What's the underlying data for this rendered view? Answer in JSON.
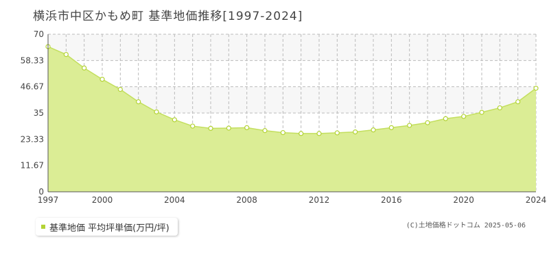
{
  "title": "横浜市中区かもめ町 基準地価推移[1997-2024]",
  "legend_label": "基準地価 平均坪単価(万円/坪)",
  "credit": "(C)土地価格ドットコム 2025-05-06",
  "colors": {
    "fill": "#dbed95",
    "line": "#c3df5e",
    "marker": "#b3d335",
    "band": "#f7f7f7"
  },
  "chart_data": {
    "type": "area",
    "title": "横浜市中区かもめ町 基準地価推移[1997-2024]",
    "xlabel": "",
    "ylabel": "",
    "xlim": [
      1997,
      2024
    ],
    "ylim": [
      0,
      70
    ],
    "y_ticks": [
      "0",
      "11.67",
      "23.33",
      "35",
      "46.67",
      "58.33",
      "70"
    ],
    "y_tick_values": [
      0,
      11.67,
      23.33,
      35,
      46.67,
      58.33,
      70
    ],
    "x_ticks": [
      "1997",
      "2000",
      "2004",
      "2008",
      "2012",
      "2016",
      "2020",
      "2024"
    ],
    "x_tick_values": [
      1997,
      2000,
      2004,
      2008,
      2012,
      2016,
      2020,
      2024
    ],
    "grid": true,
    "legend_position": "bottom-left",
    "series": [
      {
        "name": "基準地価 平均坪単価(万円/坪)",
        "x": [
          1997,
          1998,
          1999,
          2000,
          2001,
          2002,
          2003,
          2004,
          2005,
          2006,
          2007,
          2008,
          2009,
          2010,
          2011,
          2012,
          2013,
          2014,
          2015,
          2016,
          2017,
          2018,
          2019,
          2020,
          2021,
          2022,
          2023,
          2024
        ],
        "values": [
          64.5,
          61.0,
          55.0,
          50.0,
          45.5,
          40.0,
          35.5,
          32.0,
          29.2,
          28.2,
          28.3,
          28.5,
          27.2,
          26.3,
          25.9,
          25.9,
          26.2,
          26.6,
          27.5,
          28.5,
          29.5,
          30.7,
          32.5,
          33.5,
          35.3,
          37.3,
          40.0,
          46.0
        ]
      }
    ]
  }
}
